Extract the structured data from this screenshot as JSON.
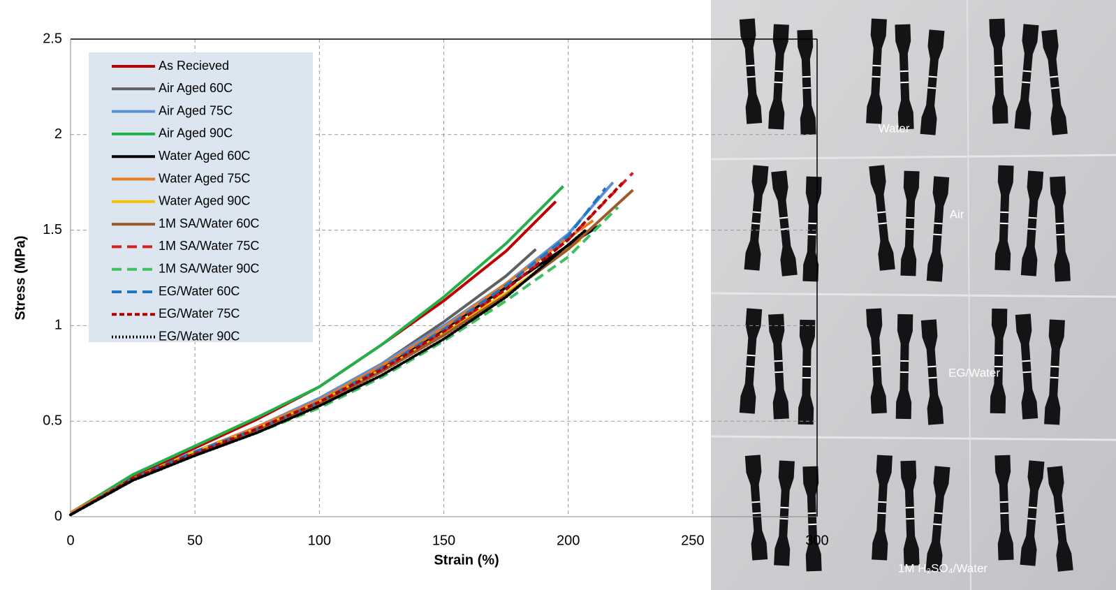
{
  "chart_data": {
    "type": "line",
    "xlabel": "Strain (%)",
    "ylabel": "Stress (MPa)",
    "xlim": [
      0,
      300
    ],
    "xticks": [
      0,
      50,
      100,
      150,
      200,
      250,
      300
    ],
    "ylim": [
      0,
      2.5
    ],
    "yticks": [
      0,
      0.5,
      1,
      1.5,
      2,
      2.5
    ],
    "grid": true,
    "legend": "upper left",
    "annotations": [
      "Water",
      "Air",
      "EG/Water",
      "1M H₂SO₄/Water"
    ],
    "series": [
      {
        "name": "As Recieved",
        "color": "#c00000",
        "dash": "solid",
        "x": [
          0,
          25,
          50,
          75,
          100,
          125,
          150,
          175,
          195
        ],
        "values": [
          0.02,
          0.21,
          0.36,
          0.51,
          0.68,
          0.9,
          1.13,
          1.39,
          1.65
        ]
      },
      {
        "name": "Air Aged 60C",
        "color": "#606060",
        "dash": "solid",
        "x": [
          0,
          25,
          50,
          75,
          100,
          125,
          150,
          175,
          187
        ],
        "values": [
          0.01,
          0.2,
          0.34,
          0.47,
          0.62,
          0.8,
          1.02,
          1.26,
          1.4
        ]
      },
      {
        "name": "Air Aged 75C",
        "color": "#5b8fd9",
        "dash": "solid",
        "x": [
          0,
          25,
          50,
          75,
          100,
          125,
          150,
          175,
          200,
          218
        ],
        "values": [
          0.01,
          0.2,
          0.34,
          0.47,
          0.62,
          0.8,
          1.0,
          1.22,
          1.48,
          1.75
        ]
      },
      {
        "name": "Air Aged 90C",
        "color": "#22b04b",
        "dash": "solid",
        "x": [
          0,
          25,
          50,
          75,
          100,
          125,
          150,
          175,
          198
        ],
        "values": [
          0.02,
          0.22,
          0.37,
          0.52,
          0.68,
          0.9,
          1.15,
          1.43,
          1.73
        ]
      },
      {
        "name": "Water Aged 60C",
        "color": "#000000",
        "dash": "solid",
        "x": [
          0,
          25,
          50,
          75,
          100,
          125,
          150,
          175,
          200,
          212
        ],
        "values": [
          0.01,
          0.2,
          0.34,
          0.46,
          0.6,
          0.78,
          0.98,
          1.2,
          1.42,
          1.52
        ]
      },
      {
        "name": "Water Aged 75C",
        "color": "#e87a22",
        "dash": "solid",
        "x": [
          0,
          25,
          50,
          75,
          100,
          125,
          150,
          175,
          200,
          210
        ],
        "values": [
          0.02,
          0.2,
          0.34,
          0.47,
          0.61,
          0.79,
          0.99,
          1.22,
          1.46,
          1.55
        ]
      },
      {
        "name": "Water Aged 90C",
        "color": "#f5c000",
        "dash": "solid",
        "x": [
          0,
          25,
          50,
          75,
          100,
          125,
          150,
          175,
          205
        ],
        "values": [
          0.01,
          0.2,
          0.34,
          0.46,
          0.6,
          0.77,
          0.96,
          1.17,
          1.45
        ]
      },
      {
        "name": "1M SA/Water 60C",
        "color": "#9c5b2a",
        "dash": "solid",
        "x": [
          0,
          25,
          50,
          75,
          100,
          125,
          150,
          175,
          200,
          226
        ],
        "values": [
          0.01,
          0.2,
          0.33,
          0.45,
          0.59,
          0.76,
          0.95,
          1.16,
          1.4,
          1.71
        ]
      },
      {
        "name": "1M SA/Water 75C",
        "color": "#d42020",
        "dash": "dashed",
        "x": [
          0,
          25,
          50,
          75,
          100,
          125,
          150,
          175,
          200,
          226
        ],
        "values": [
          0.01,
          0.2,
          0.33,
          0.46,
          0.6,
          0.77,
          0.97,
          1.19,
          1.45,
          1.8
        ]
      },
      {
        "name": "1M SA/Water 90C",
        "color": "#3cc060",
        "dash": "dashed",
        "x": [
          0,
          25,
          50,
          75,
          100,
          125,
          150,
          175,
          200,
          220
        ],
        "values": [
          0.01,
          0.19,
          0.32,
          0.44,
          0.57,
          0.73,
          0.92,
          1.13,
          1.36,
          1.62
        ]
      },
      {
        "name": "EG/Water 60C",
        "color": "#1f77c4",
        "dash": "dashed",
        "x": [
          0,
          25,
          50,
          75,
          100,
          125,
          150,
          175,
          200,
          215
        ],
        "values": [
          0.01,
          0.2,
          0.34,
          0.46,
          0.6,
          0.78,
          0.98,
          1.21,
          1.47,
          1.72
        ]
      },
      {
        "name": "EG/Water 75C",
        "color": "#b00000",
        "dash": "short",
        "x": [
          0,
          25,
          50,
          75,
          100,
          125,
          150,
          175,
          200,
          222
        ],
        "values": [
          0.01,
          0.2,
          0.33,
          0.46,
          0.6,
          0.77,
          0.97,
          1.19,
          1.45,
          1.75
        ]
      },
      {
        "name": "EG/Water 90C",
        "color": "#000000",
        "dash": "dotted",
        "x": [
          0,
          25,
          50,
          75,
          100,
          125,
          150,
          175,
          207
        ],
        "values": [
          0.01,
          0.19,
          0.32,
          0.44,
          0.58,
          0.74,
          0.93,
          1.15,
          1.5
        ]
      }
    ]
  }
}
